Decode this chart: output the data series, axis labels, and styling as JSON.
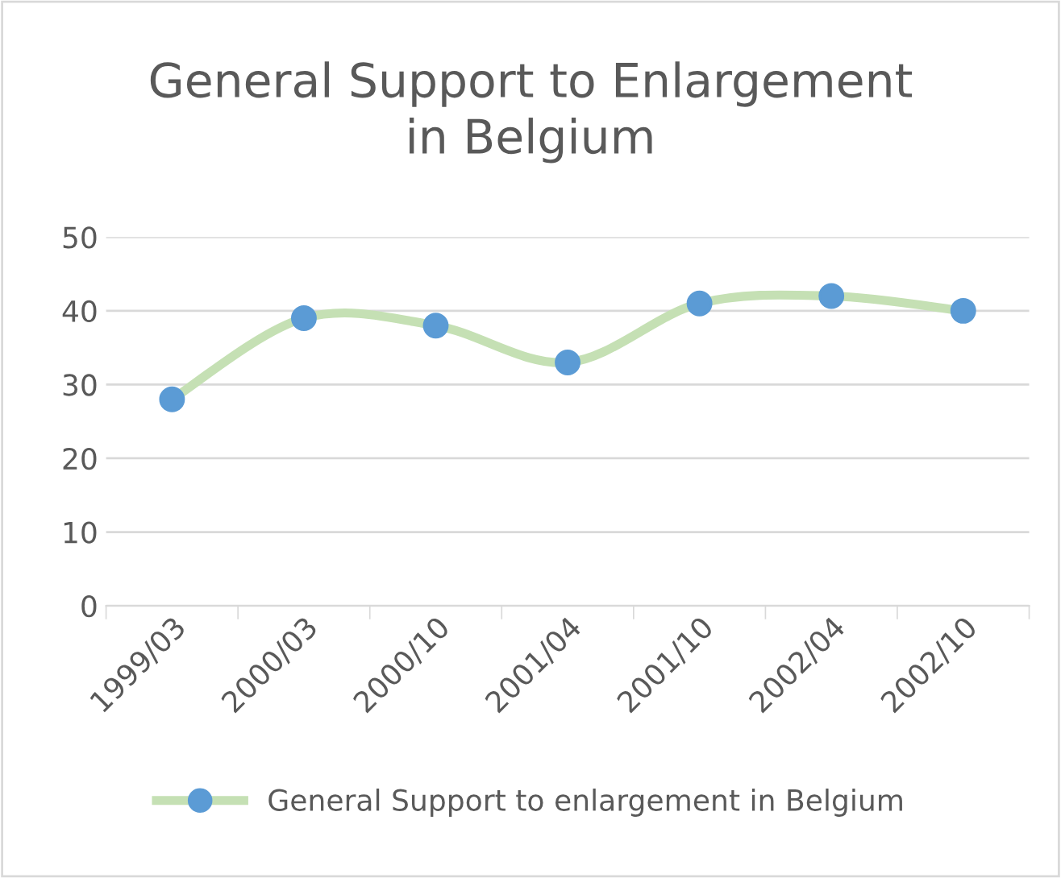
{
  "chart_data": {
    "type": "line",
    "title": "General Support to Enlargement\nin Belgium",
    "categories": [
      "1999/03",
      "2000/03",
      "2000/10",
      "2001/04",
      "2001/10",
      "2002/04",
      "2002/10"
    ],
    "series": [
      {
        "name": "General Support to enlargement in Belgium",
        "color": "#c5e0b4",
        "colors": [
          "#5b9bd5",
          "#5b9bd5",
          "#5b9bd5",
          "#5b9bd5",
          "#5b9bd5",
          "#5b9bd5",
          "#5b9bd5"
        ],
        "values": [
          28,
          39,
          38,
          33,
          41,
          42,
          40
        ]
      }
    ],
    "ylim": [
      0,
      50
    ],
    "yticks": [
      0,
      10,
      20,
      30,
      40,
      50
    ],
    "grid": "y",
    "legend": "bottom",
    "marker": "circle",
    "line_style": "solid"
  }
}
